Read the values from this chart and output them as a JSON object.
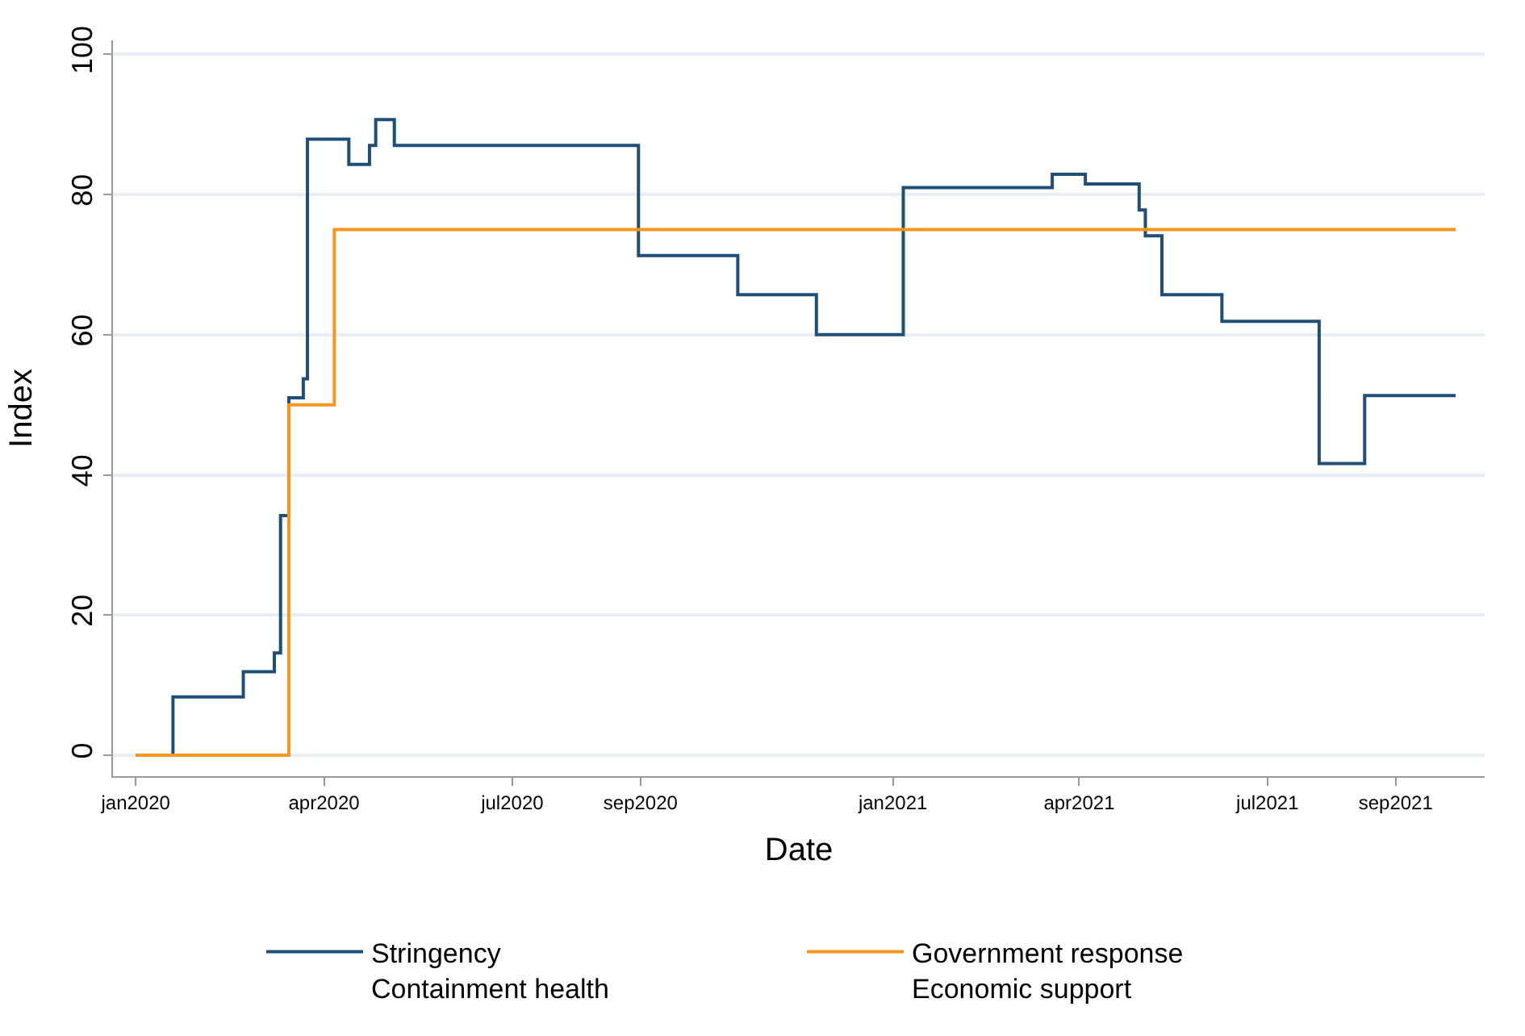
{
  "chart_data": {
    "type": "step",
    "xlabel": "Date",
    "ylabel": "Index",
    "xlim": [
      "2019-12-21",
      "2021-10-14"
    ],
    "xticks": [
      {
        "value": "2020-01-01",
        "label": "jan2020"
      },
      {
        "value": "2020-04-01",
        "label": "apr2020"
      },
      {
        "value": "2020-07-01",
        "label": "jul2020"
      },
      {
        "value": "2020-09-01",
        "label": "sep2020"
      },
      {
        "value": "2021-01-01",
        "label": "jan2021"
      },
      {
        "value": "2021-04-01",
        "label": "apr2021"
      },
      {
        "value": "2021-07-01",
        "label": "jul2021"
      },
      {
        "value": "2021-09-01",
        "label": "sep2021"
      }
    ],
    "ylim": [
      -3,
      102
    ],
    "yticks": [
      0,
      20,
      40,
      60,
      80,
      100
    ],
    "grid": "y",
    "legend": "bottom",
    "marker": "none",
    "line_style": "solid",
    "series": [
      {
        "name": "Stringency\nContainment health",
        "color": "#1f4e79",
        "x": [
          "2020-01-01",
          "2020-01-19",
          "2020-02-22",
          "2020-03-08",
          "2020-03-11",
          "2020-03-15",
          "2020-03-22",
          "2020-03-24",
          "2020-04-13",
          "2020-04-23",
          "2020-04-26",
          "2020-05-05",
          "2020-08-31",
          "2020-10-18",
          "2020-11-25",
          "2021-01-06",
          "2021-03-19",
          "2021-04-04",
          "2021-04-30",
          "2021-05-03",
          "2021-05-11",
          "2021-06-09",
          "2021-07-26",
          "2021-08-17",
          "2021-09-30"
        ],
        "values": [
          0,
          8.3,
          11.9,
          14.6,
          34.2,
          51,
          53.7,
          87.9,
          84.3,
          87,
          90.7,
          87,
          71.3,
          65.7,
          60,
          81,
          82.9,
          81.5,
          77.8,
          74.1,
          65.7,
          61.9,
          41.6,
          51.3,
          51.3
        ]
      },
      {
        "name": "Government response\nEconomic support",
        "color": "#f5961e",
        "x": [
          "2020-01-01",
          "2020-03-15",
          "2020-04-06",
          "2021-09-30"
        ],
        "values": [
          0,
          50,
          75,
          75
        ]
      }
    ]
  }
}
